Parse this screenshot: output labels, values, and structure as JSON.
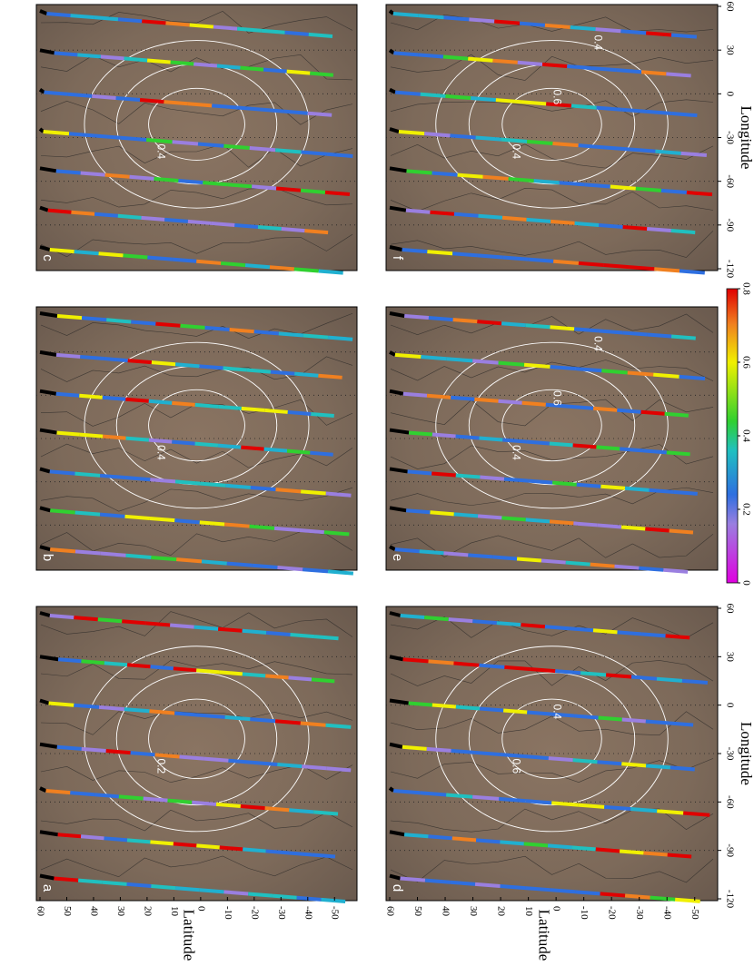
{
  "panels": [
    {
      "label": "c",
      "contour_labels": [
        "0.4"
      ]
    },
    {
      "label": "b",
      "contour_labels": [
        "0.4"
      ]
    },
    {
      "label": "a",
      "contour_labels": [
        "0.2"
      ]
    },
    {
      "label": "f",
      "contour_labels": [
        "0.4",
        "0.6",
        "0.4"
      ]
    },
    {
      "label": "e",
      "contour_labels": [
        "0.4",
        "0.6",
        "0.4"
      ]
    },
    {
      "label": "d",
      "contour_labels": [
        "0.6",
        "0.4"
      ]
    }
  ],
  "latitude_axis": {
    "title": "Latitude",
    "ticks": [
      "60",
      "50",
      "40",
      "30",
      "20",
      "10",
      "0",
      "-10",
      "-20",
      "-30",
      "-40",
      "-50"
    ]
  },
  "longitude_axis": {
    "title": "Longitude",
    "ticks": [
      "-120",
      "-90",
      "-60",
      "-30",
      "0",
      "30",
      "60"
    ]
  },
  "colorbar": {
    "ticks": [
      "0",
      "0.2",
      "0.4",
      "0.6",
      "0.8"
    ]
  }
}
